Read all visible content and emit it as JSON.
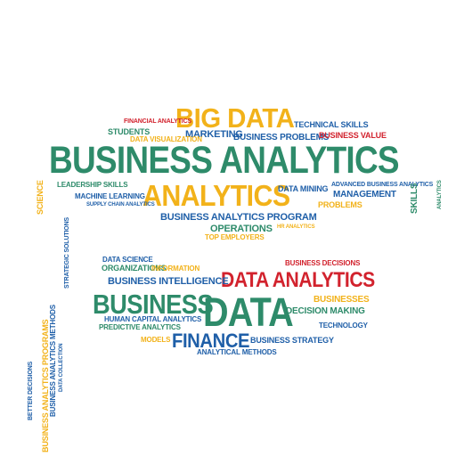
{
  "cloud": {
    "major": [
      {
        "text": "BIG DATA",
        "color": "#f2b21a"
      },
      {
        "text": "BUSINESS ANALYTICS",
        "color": "#2e8b6a"
      },
      {
        "text": "ANALYTICS",
        "color": "#f2b21a"
      },
      {
        "text": "DATA ANALYTICS",
        "color": "#d2222d"
      },
      {
        "text": "BUSINESS",
        "color": "#2e8b6a"
      },
      {
        "text": "DATA",
        "color": "#2e8b6a"
      },
      {
        "text": "FINANCE",
        "color": "#1f5fa8"
      }
    ],
    "minor": {
      "technical_skills": "TECHNICAL SKILLS",
      "marketing": "MARKETING",
      "business_problems": "BUSINESS PROBLEMS",
      "business_value": "BUSINESS VALUE",
      "students": "STUDENTS",
      "data_visualization": "DATA VISUALIZATION",
      "financial_analytics": "FINANCIAL ANALYTICS",
      "leadership_skills": "LEADERSHIP SKILLS",
      "machine_learning": "MACHINE LEARNING",
      "supply_chain": "SUPPLY CHAIN ANALYTICS",
      "data_mining": "DATA MINING",
      "advanced_ba": "ADVANCED BUSINESS ANALYTICS",
      "management": "MANAGEMENT",
      "problems": "PROBLEMS",
      "ba_program": "BUSINESS ANALYTICS PROGRAM",
      "operations": "OPERATIONS",
      "hr_analytics": "HR ANALYTICS",
      "top_employers": "TOP EMPLOYERS",
      "business_decisions": "BUSINESS DECISIONS",
      "data_science": "DATA SCIENCE",
      "organizations": "ORGANIZATIONS",
      "information": "INFORMATION",
      "business_intelligence": "BUSINESS INTELLIGENCE",
      "businesses": "BUSINESSES",
      "decision_making": "DECISION MAKING",
      "technology": "TECHNOLOGY",
      "human_capital": "HUMAN CAPITAL ANALYTICS",
      "predictive": "PREDICTIVE ANALYTICS",
      "business_strategy": "BUSINESS STRATEGY",
      "models": "MODELS",
      "analytical_methods": "ANALYTICAL METHODS"
    },
    "vertical": {
      "science": "SCIENCE",
      "strategic": "STRATEGIC SOLUTIONS",
      "skills": "SKILLS",
      "ba_programs": "BUSINESS ANALYTICS PROGRAMS",
      "ba_methods": "BUSINESS ANALYTICS METHODS",
      "better_decisions": "BETTER DECISIONS",
      "data_collection": "DATA COLLECTION",
      "small_v1": "ANALYTICS"
    }
  }
}
